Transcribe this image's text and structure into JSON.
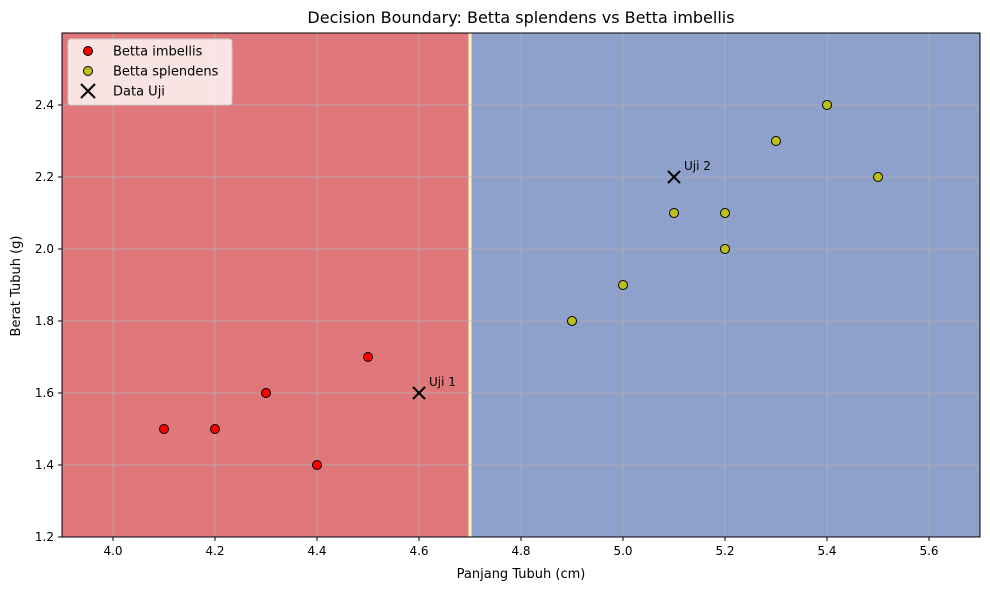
{
  "chart_data": {
    "type": "scatter",
    "title": "Decision Boundary: Betta splendens vs Betta imbellis",
    "xlabel": "Panjang Tubuh (cm)",
    "ylabel": "Berat Tubuh (g)",
    "xlim": [
      3.9,
      5.7
    ],
    "ylim": [
      1.2,
      2.6
    ],
    "x_ticks": [
      4.0,
      4.2,
      4.4,
      4.6,
      4.8,
      5.0,
      5.2,
      5.4,
      5.6
    ],
    "y_ticks": [
      1.2,
      1.4,
      1.6,
      1.8,
      2.0,
      2.2,
      2.4
    ],
    "grid": true,
    "legend_position": "top-left",
    "decision_boundary": {
      "x": 4.7,
      "left_region_color": "#e0787b",
      "right_region_color": "#8da1cb",
      "boundary_color": "#fff5c0"
    },
    "series": [
      {
        "name": "Betta imbellis",
        "color": "#ff0000",
        "marker": "circle",
        "points": [
          [
            4.1,
            1.5
          ],
          [
            4.2,
            1.5
          ],
          [
            4.3,
            1.6
          ],
          [
            4.4,
            1.4
          ],
          [
            4.5,
            1.7
          ]
        ]
      },
      {
        "name": "Betta splendens",
        "color": "#bfbf1a",
        "marker": "circle",
        "points": [
          [
            4.9,
            1.8
          ],
          [
            5.0,
            1.9
          ],
          [
            5.1,
            2.1
          ],
          [
            5.2,
            2.0
          ],
          [
            5.2,
            2.1
          ],
          [
            5.3,
            2.3
          ],
          [
            5.4,
            2.4
          ],
          [
            5.5,
            2.2
          ]
        ]
      },
      {
        "name": "Data Uji",
        "color": "#000000",
        "marker": "x",
        "points": [
          [
            4.6,
            1.6
          ],
          [
            5.1,
            2.2
          ]
        ],
        "point_labels": [
          "Uji 1",
          "Uji 2"
        ]
      }
    ]
  }
}
